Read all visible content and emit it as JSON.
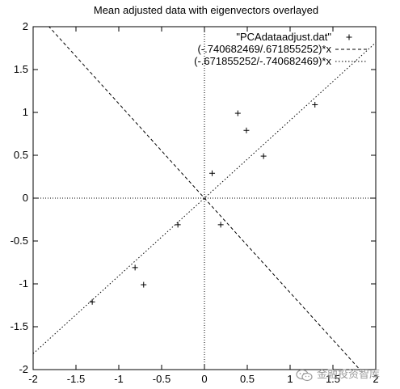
{
  "chart_data": {
    "type": "scatter",
    "title": "Mean adjusted data with eigenvectors overlayed",
    "xlabel": "",
    "ylabel": "",
    "xlim": [
      -2,
      2
    ],
    "ylim": [
      -2,
      2
    ],
    "xticks": [
      -2,
      -1.5,
      -1,
      -0.5,
      0,
      0.5,
      1,
      1.5,
      2
    ],
    "yticks": [
      -2,
      -1.5,
      -1,
      -0.5,
      0,
      0.5,
      1,
      1.5,
      2
    ],
    "xtick_labels": [
      "-2",
      "-1.5",
      "-1",
      "-0.5",
      "0",
      "0.5",
      "1",
      "1.5",
      "2"
    ],
    "ytick_labels": [
      "-2",
      "-1.5",
      "-1",
      "-0.5",
      "0",
      "0.5",
      "1",
      "1.5",
      "2"
    ],
    "grid": false,
    "zero_axes": true,
    "legend_position": "top-right",
    "series": [
      {
        "name": "\"PCAdataadjust.dat\"",
        "kind": "points",
        "marker": "+",
        "x": [
          0.69,
          -1.31,
          0.39,
          0.09,
          1.29,
          0.49,
          0.19,
          -0.81,
          -0.31,
          -0.71
        ],
        "y": [
          0.49,
          -1.21,
          0.99,
          0.29,
          1.09,
          0.79,
          -0.31,
          -0.81,
          -0.31,
          -1.01
        ]
      },
      {
        "name": "(-.740682469/.671855252)*x",
        "kind": "line",
        "dash": "dashed",
        "slope": -1.1024
      },
      {
        "name": "(-.671855252/-.740682469)*x",
        "kind": "line",
        "dash": "dotted",
        "slope": 0.9071
      }
    ]
  },
  "watermark": {
    "text": "金融投资智库",
    "icon": "wechat-icon"
  }
}
